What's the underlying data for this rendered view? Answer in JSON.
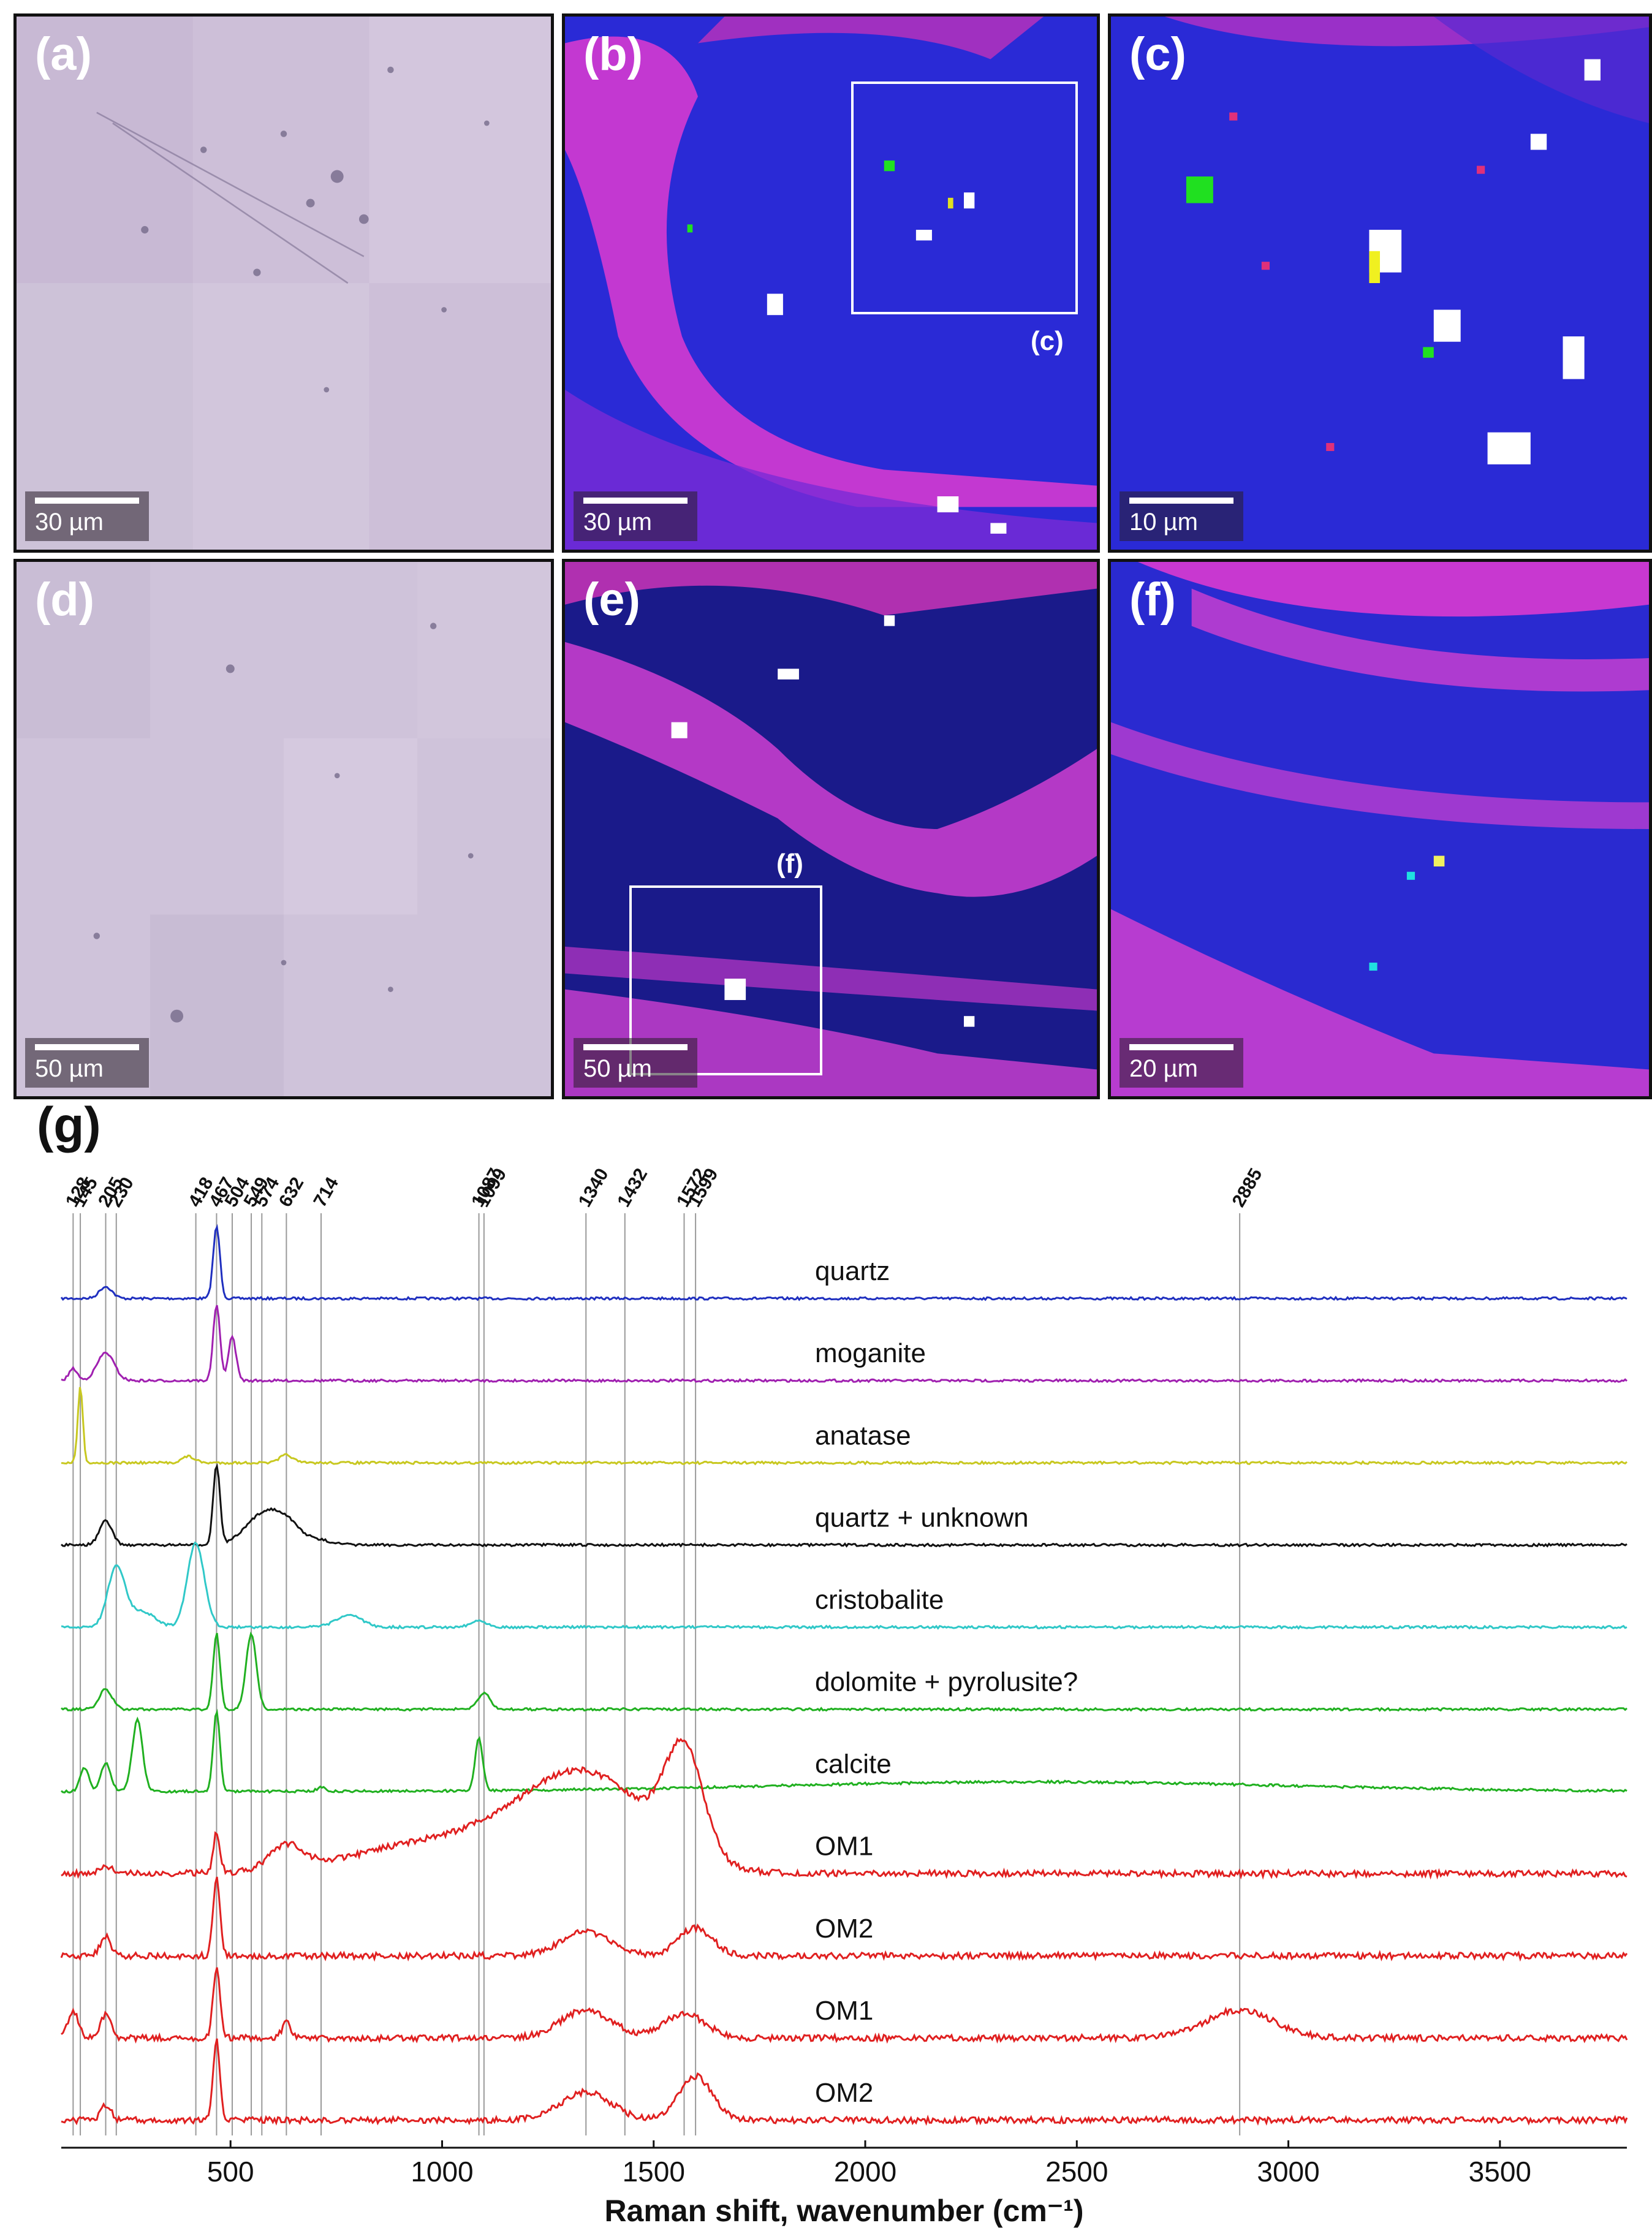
{
  "panels": {
    "a": {
      "label": "(a)",
      "scale": "30 µm"
    },
    "b": {
      "label": "(b)",
      "scale": "30 µm",
      "roi": "(c)"
    },
    "c": {
      "label": "(c)",
      "scale": "10 µm"
    },
    "d": {
      "label": "(d)",
      "scale": "50 µm"
    },
    "e": {
      "label": "(e)",
      "scale": "50 µm",
      "roi": "(f)"
    },
    "f": {
      "label": "(f)",
      "scale": "20 µm"
    }
  },
  "colors": {
    "quartz": "#1f2fbf",
    "moganite": "#a020b0",
    "anatase": "#c8c820",
    "quartz_unknown": "#111111",
    "cristobalite": "#30c8c8",
    "green": "#20b020",
    "red": "#e02020",
    "map_blue": "#2b2bd9",
    "map_magenta": "#e03ad0",
    "optical": "#cbbfd6"
  },
  "chart_data": {
    "type": "line",
    "panel_label": "(g)",
    "xlabel": "Raman shift, wavenumber (cm⁻¹)",
    "xlim": [
      100,
      3800
    ],
    "xticks": [
      500,
      1000,
      1500,
      2000,
      2500,
      3000,
      3500
    ],
    "xtick_labels": [
      "500",
      "1000",
      "1500",
      "2000",
      "2500",
      "3000",
      "3500"
    ],
    "peak_markers": [
      128,
      145,
      205,
      230,
      418,
      467,
      504,
      549,
      574,
      632,
      714,
      1087,
      1099,
      1340,
      1432,
      1572,
      1599,
      2885
    ],
    "peak_marker_labels": [
      "128",
      "145",
      "205",
      "230",
      "418",
      "467",
      "504",
      "549",
      "574",
      "632",
      "714",
      "1087",
      "1099",
      "1340",
      "1432",
      "1572",
      "1599",
      "2885"
    ],
    "series": [
      {
        "name": "quartz",
        "color_key": "quartz",
        "peaks": [
          [
            205,
            0.15,
            15
          ],
          [
            467,
            0.9,
            8
          ]
        ]
      },
      {
        "name": "moganite",
        "color_key": "moganite",
        "peaks": [
          [
            128,
            0.15,
            10
          ],
          [
            205,
            0.35,
            20
          ],
          [
            467,
            0.95,
            8
          ],
          [
            504,
            0.55,
            9
          ]
        ]
      },
      {
        "name": "anatase",
        "color_key": "anatase",
        "peaks": [
          [
            145,
            0.95,
            6
          ],
          [
            400,
            0.08,
            15
          ],
          [
            632,
            0.1,
            15
          ]
        ]
      },
      {
        "name": "quartz + unknown",
        "color_key": "quartz_unknown",
        "peaks": [
          [
            205,
            0.3,
            15
          ],
          [
            467,
            1.0,
            8
          ],
          [
            574,
            0.35,
            40
          ],
          [
            632,
            0.25,
            35
          ],
          [
            714,
            0.05,
            30
          ]
        ]
      },
      {
        "name": "cristobalite",
        "color_key": "cristobalite",
        "peaks": [
          [
            230,
            0.75,
            20
          ],
          [
            290,
            0.2,
            30
          ],
          [
            418,
            1.05,
            20
          ],
          [
            780,
            0.15,
            30
          ],
          [
            1087,
            0.08,
            20
          ]
        ]
      },
      {
        "name": "dolomite + pyrolusite?",
        "color_key": "green",
        "peaks": [
          [
            205,
            0.25,
            15
          ],
          [
            467,
            0.95,
            8
          ],
          [
            549,
            0.95,
            12
          ],
          [
            1099,
            0.2,
            15
          ]
        ]
      },
      {
        "name": "calcite",
        "color_key": "green",
        "peaks": [
          [
            155,
            0.3,
            10
          ],
          [
            205,
            0.35,
            12
          ],
          [
            280,
            0.9,
            12
          ],
          [
            467,
            1.0,
            8
          ],
          [
            714,
            0.05,
            10
          ],
          [
            1087,
            0.65,
            9
          ],
          [
            2400,
            0.12,
            600
          ]
        ]
      },
      {
        "name": "OM1",
        "color_key": "red",
        "peaks": [
          [
            205,
            0.1,
            15
          ],
          [
            467,
            0.5,
            8
          ],
          [
            632,
            0.3,
            40
          ],
          [
            1340,
            1.2,
            150
          ],
          [
            1572,
            1.3,
            45
          ],
          [
            1000,
            0.4,
            200
          ]
        ]
      },
      {
        "name": "OM2",
        "color_key": "red",
        "peaks": [
          [
            205,
            0.25,
            12
          ],
          [
            467,
            1.0,
            8
          ],
          [
            1340,
            0.3,
            60
          ],
          [
            1599,
            0.35,
            40
          ]
        ]
      },
      {
        "name": "OM1",
        "color_key": "red",
        "peaks": [
          [
            128,
            0.35,
            12
          ],
          [
            205,
            0.3,
            12
          ],
          [
            467,
            0.9,
            8
          ],
          [
            632,
            0.2,
            10
          ],
          [
            1340,
            0.35,
            60
          ],
          [
            1572,
            0.3,
            50
          ],
          [
            2885,
            0.35,
            80
          ]
        ]
      },
      {
        "name": "OM2",
        "color_key": "red",
        "peaks": [
          [
            205,
            0.2,
            12
          ],
          [
            467,
            1.0,
            8
          ],
          [
            1340,
            0.35,
            60
          ],
          [
            1599,
            0.55,
            40
          ]
        ]
      }
    ]
  }
}
